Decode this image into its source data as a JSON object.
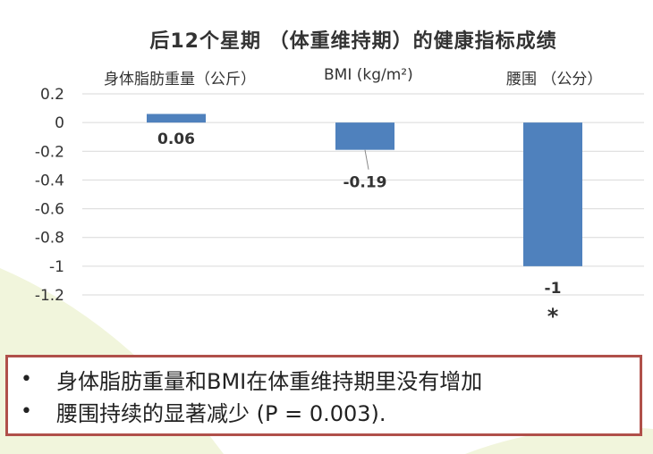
{
  "title": "后12个星期 （体重维持期）的健康指标成绩",
  "categories": [
    "身体脂肪重量（公斤）",
    "BMI (kg/m²)",
    "腰围 （公分）"
  ],
  "chart_data": {
    "type": "bar",
    "title": "后12个星期 （体重维持期）的健康指标成绩",
    "categories": [
      "身体脂肪重量（公斤）",
      "BMI (kg/m²)",
      "腰围 （公分）"
    ],
    "values": [
      0.06,
      -0.19,
      -1
    ],
    "data_labels": [
      "0.06",
      "-0.19",
      "-1"
    ],
    "significance_marks": [
      "",
      "",
      "*"
    ],
    "yticks": [
      "0.2",
      "0",
      "-0.2",
      "-0.4",
      "-0.6",
      "-0.8",
      "-1",
      "-1.2"
    ],
    "ylim": [
      -1.2,
      0.2
    ],
    "grid": true,
    "bar_color": "#4f81bd"
  },
  "summary": {
    "bullet_symbol": "•",
    "lines": [
      "身体脂肪重量和BMI在体重维持期里没有增加",
      "腰围持续的显著减少 (P = 0.003)."
    ]
  },
  "colors": {
    "bar": "#4f81bd",
    "box_border": "#b0504a",
    "accent_background": "#eef3d8"
  }
}
